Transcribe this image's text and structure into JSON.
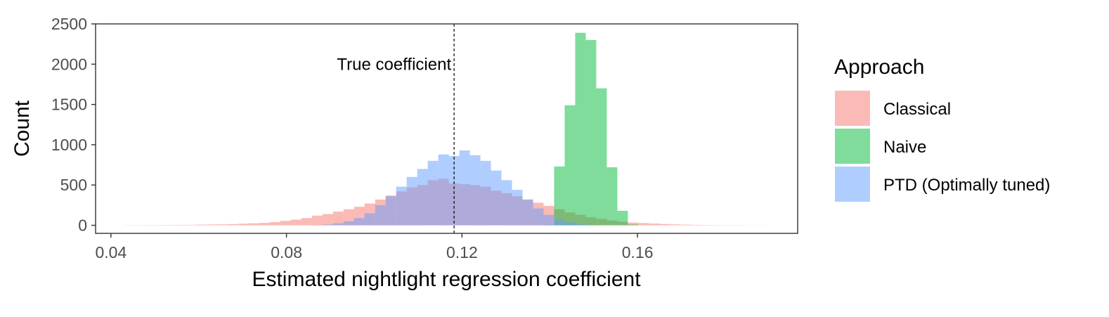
{
  "chart_data": {
    "type": "bar",
    "xlabel": "Estimated nightlight regression coefficient",
    "ylabel": "Count",
    "xlim": [
      0.0365,
      0.1965
    ],
    "ylim": [
      -100,
      2500
    ],
    "x_ticks": [
      "0.04",
      "0.08",
      "0.12",
      "0.16"
    ],
    "x_tick_values": [
      0.04,
      0.08,
      0.12,
      0.16
    ],
    "y_ticks": [
      "0",
      "500",
      "1000",
      "1500",
      "2000",
      "2500"
    ],
    "y_tick_values": [
      0,
      500,
      1000,
      1500,
      2000,
      2500
    ],
    "grid": false,
    "bin_width": 0.0024,
    "reference_line": {
      "x": 0.1182,
      "label": "True coefficient",
      "style": "dashed"
    },
    "legend": {
      "title": "Approach",
      "placement": "right"
    },
    "series": [
      {
        "name": "Classical",
        "color": "#F8766D",
        "opacity": 0.5,
        "bins": [
          [
            0.0438,
            2
          ],
          [
            0.0462,
            2
          ],
          [
            0.0486,
            3
          ],
          [
            0.051,
            3
          ],
          [
            0.0534,
            4
          ],
          [
            0.0558,
            5
          ],
          [
            0.0582,
            6
          ],
          [
            0.0606,
            8
          ],
          [
            0.063,
            10
          ],
          [
            0.0654,
            12
          ],
          [
            0.0678,
            15
          ],
          [
            0.0702,
            20
          ],
          [
            0.0726,
            25
          ],
          [
            0.075,
            30
          ],
          [
            0.0774,
            40
          ],
          [
            0.0798,
            55
          ],
          [
            0.0822,
            70
          ],
          [
            0.0846,
            90
          ],
          [
            0.087,
            120
          ],
          [
            0.0894,
            140
          ],
          [
            0.0918,
            170
          ],
          [
            0.0942,
            200
          ],
          [
            0.0966,
            230
          ],
          [
            0.099,
            270
          ],
          [
            0.1014,
            320
          ],
          [
            0.1038,
            370
          ],
          [
            0.1062,
            420
          ],
          [
            0.1086,
            470
          ],
          [
            0.111,
            500
          ],
          [
            0.1134,
            560
          ],
          [
            0.1158,
            580
          ],
          [
            0.1182,
            520
          ],
          [
            0.1206,
            510
          ],
          [
            0.123,
            500
          ],
          [
            0.1254,
            480
          ],
          [
            0.1278,
            430
          ],
          [
            0.1302,
            400
          ],
          [
            0.1326,
            360
          ],
          [
            0.135,
            320
          ],
          [
            0.1374,
            280
          ],
          [
            0.1398,
            240
          ],
          [
            0.1422,
            200
          ],
          [
            0.1446,
            160
          ],
          [
            0.147,
            130
          ],
          [
            0.1494,
            100
          ],
          [
            0.1518,
            80
          ],
          [
            0.1542,
            60
          ],
          [
            0.1566,
            45
          ],
          [
            0.159,
            35
          ],
          [
            0.1614,
            28
          ],
          [
            0.1638,
            22
          ],
          [
            0.1662,
            16
          ],
          [
            0.1686,
            12
          ],
          [
            0.171,
            8
          ],
          [
            0.1734,
            6
          ],
          [
            0.1758,
            4
          ],
          [
            0.1782,
            3
          ],
          [
            0.1806,
            2
          ],
          [
            0.183,
            2
          ],
          [
            0.1854,
            1
          ],
          [
            0.1878,
            1
          ]
        ]
      },
      {
        "name": "Naive",
        "color": "#00BA38",
        "opacity": 0.5,
        "bins": [
          [
            0.1398,
            5
          ],
          [
            0.1422,
            730
          ],
          [
            0.1446,
            1490
          ],
          [
            0.147,
            2390
          ],
          [
            0.1494,
            2300
          ],
          [
            0.1518,
            1700
          ],
          [
            0.1542,
            720
          ],
          [
            0.1566,
            180
          ],
          [
            0.159,
            10
          ]
        ]
      },
      {
        "name": "PTD (Optimally tuned)",
        "color": "#619CFF",
        "opacity": 0.5,
        "bins": [
          [
            0.087,
            3
          ],
          [
            0.0894,
            10
          ],
          [
            0.0918,
            25
          ],
          [
            0.0942,
            50
          ],
          [
            0.0966,
            90
          ],
          [
            0.099,
            150
          ],
          [
            0.1014,
            250
          ],
          [
            0.1038,
            360
          ],
          [
            0.1062,
            480
          ],
          [
            0.1086,
            600
          ],
          [
            0.111,
            700
          ],
          [
            0.1134,
            800
          ],
          [
            0.1158,
            880
          ],
          [
            0.1182,
            860
          ],
          [
            0.1206,
            930
          ],
          [
            0.123,
            870
          ],
          [
            0.1254,
            800
          ],
          [
            0.1278,
            680
          ],
          [
            0.1302,
            560
          ],
          [
            0.1326,
            440
          ],
          [
            0.135,
            320
          ],
          [
            0.1374,
            210
          ],
          [
            0.1398,
            130
          ],
          [
            0.1422,
            70
          ],
          [
            0.1446,
            35
          ],
          [
            0.147,
            15
          ],
          [
            0.1494,
            5
          ]
        ]
      }
    ]
  }
}
